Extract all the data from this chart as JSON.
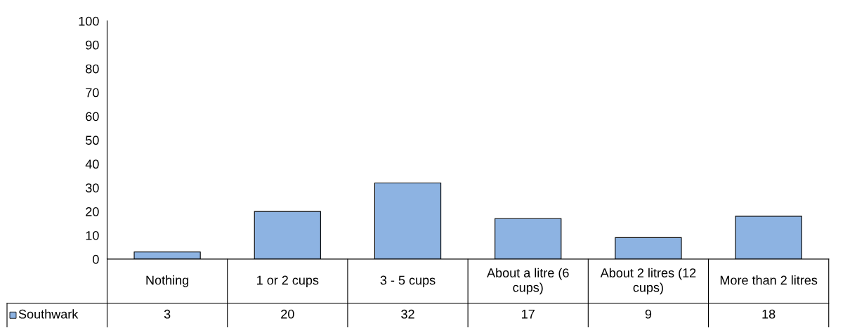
{
  "chart_data": {
    "type": "bar",
    "categories": [
      "Nothing",
      "1 or 2 cups",
      "3 - 5 cups",
      "About a litre (6 cups)",
      "About 2 litres (12 cups)",
      "More than 2 litres"
    ],
    "series": [
      {
        "name": "Southwark",
        "color": "#8db3e2",
        "values": [
          3,
          20,
          32,
          17,
          9,
          18
        ]
      }
    ],
    "ylim": [
      0,
      100
    ],
    "yticks": [
      0,
      10,
      20,
      30,
      40,
      50,
      60,
      70,
      80,
      90,
      100
    ],
    "grid": false,
    "legend": "bottom",
    "data_labels": true
  }
}
